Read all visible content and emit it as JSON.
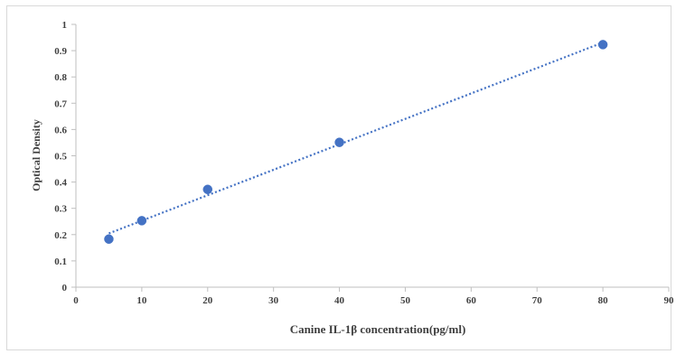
{
  "chart_data": {
    "type": "scatter",
    "xlabel": "Canine IL-1β concentration(pg/ml)",
    "ylabel": "Optical Density",
    "xlim": [
      0,
      90
    ],
    "ylim": [
      0,
      1
    ],
    "x_ticks": [
      0,
      10,
      20,
      30,
      40,
      50,
      60,
      70,
      80,
      90
    ],
    "y_ticks": [
      0,
      0.1,
      0.2,
      0.3,
      0.4,
      0.5,
      0.6,
      0.7,
      0.8,
      0.9,
      1
    ],
    "x_tick_labels": [
      "0",
      "10",
      "20",
      "30",
      "40",
      "50",
      "60",
      "70",
      "80",
      "90"
    ],
    "y_tick_labels": [
      "0",
      "0.1",
      "0.2",
      "0.3",
      "0.4",
      "0.5",
      "0.6",
      "0.7",
      "0.8",
      "0.9",
      "1"
    ],
    "grid": false,
    "series": [
      {
        "x": [
          5,
          10,
          20,
          40,
          80
        ],
        "y": [
          0.183,
          0.253,
          0.372,
          0.551,
          0.923
        ],
        "color": "#4472c4",
        "trendline": "linear, dotted"
      }
    ]
  }
}
